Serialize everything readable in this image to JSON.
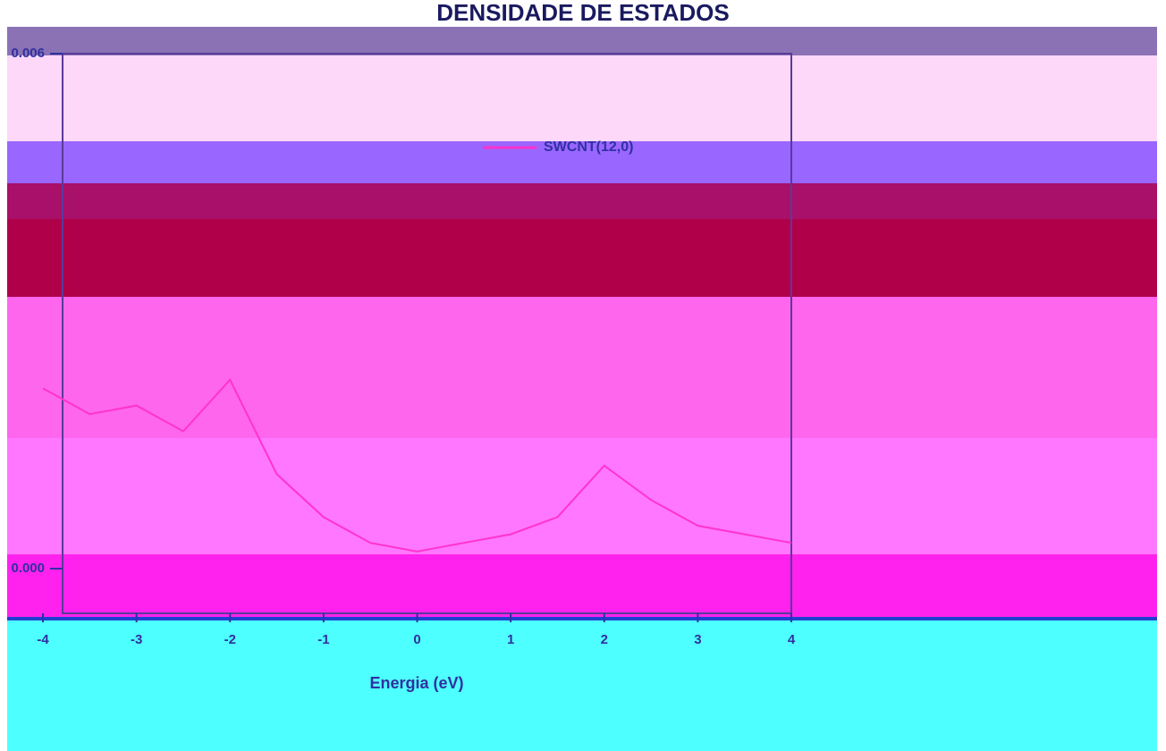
{
  "chart_data": {
    "type": "line",
    "title": "DENSIDADE DE ESTADOS",
    "x_label": "Energia (eV)",
    "x": [
      -4,
      -3.5,
      -3,
      -2.5,
      -2,
      -1.5,
      -1,
      -0.5,
      0,
      0.5,
      1,
      1.5,
      2,
      2.5,
      3,
      3.5,
      4
    ],
    "series": [
      {
        "name": "SWCNT(12,0)",
        "color": "#ff33cc",
        "values": [
          0.0021,
          0.0018,
          0.0019,
          0.0016,
          0.0022,
          0.0011,
          0.0006,
          0.0003,
          0.0002,
          0.0003,
          0.0004,
          0.0006,
          0.0012,
          0.0008,
          0.0005,
          0.0004,
          0.0003
        ]
      }
    ],
    "xlim": [
      -4,
      4
    ],
    "xticks": [
      -4,
      -3,
      -2,
      -1,
      0,
      1,
      2,
      3,
      4
    ],
    "ylim": [
      0,
      0.006
    ],
    "yticks": [
      {
        "value": 0,
        "label": "0.000"
      },
      {
        "value": 0.006,
        "label": "0.006"
      }
    ]
  }
}
